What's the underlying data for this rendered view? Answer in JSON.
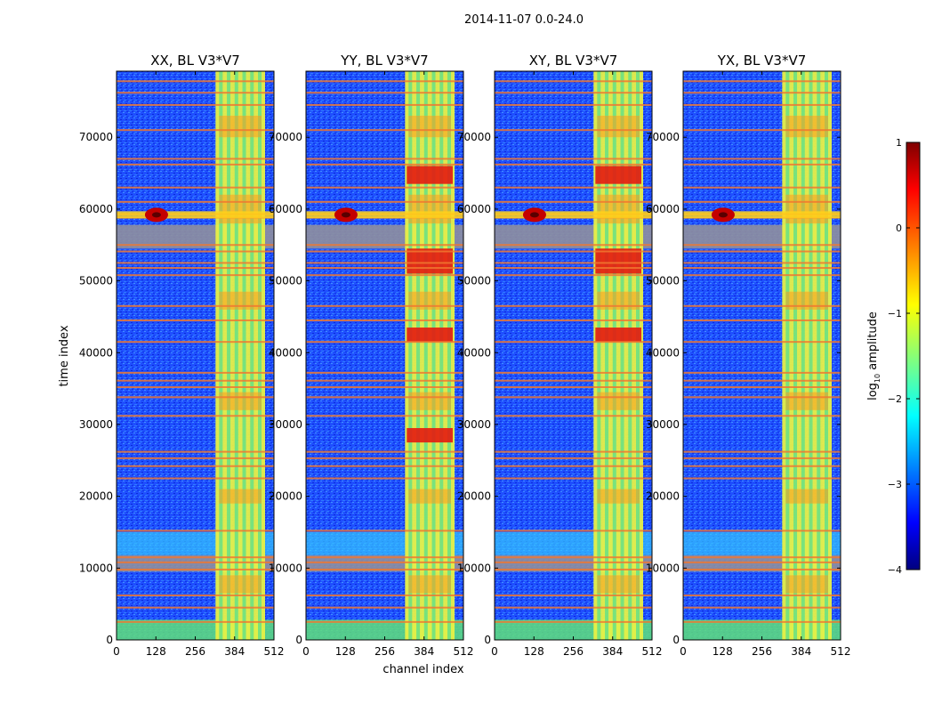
{
  "figure": {
    "suptitle": "2014-11-07 0.0-24.0",
    "xlabel": "channel index",
    "ylabel": "time index"
  },
  "chart_data": {
    "type": "heatmap",
    "title": "2014-11-07 0.0-24.0",
    "xlabel": "channel index",
    "ylabel": "time index",
    "xlim": [
      0,
      512
    ],
    "ylim": [
      0,
      79200
    ],
    "xticks": [
      0,
      128,
      256,
      384,
      512
    ],
    "yticks": [
      0,
      10000,
      20000,
      30000,
      40000,
      50000,
      60000,
      70000
    ],
    "panels": [
      {
        "title": "XX, BL V3*V7",
        "hot_band_channels": [
          322,
          512
        ],
        "strong_blocks": []
      },
      {
        "title": "YY, BL V3*V7",
        "hot_band_channels": [
          322,
          512
        ],
        "strong_blocks": [
          [
            63500,
            66000
          ],
          [
            41500,
            43500
          ],
          [
            27500,
            29500
          ],
          [
            51000,
            54500
          ]
        ]
      },
      {
        "title": "XY, BL V3*V7",
        "hot_band_channels": [
          322,
          512
        ],
        "strong_blocks": [
          [
            63500,
            66000
          ],
          [
            41500,
            43500
          ],
          [
            51000,
            54500
          ]
        ]
      },
      {
        "title": "YX, BL V3*V7",
        "hot_band_channels": [
          322,
          512
        ],
        "strong_blocks": []
      }
    ],
    "colorbar": {
      "label": "log",
      "label_sub": "10",
      "label_suffix": " amplitude",
      "range": [
        -4,
        1
      ],
      "ticks": [
        1,
        0,
        -1,
        -2,
        -3,
        -4
      ],
      "tick_labels": [
        "1",
        "0",
        "−1",
        "−2",
        "−3",
        "−4"
      ],
      "colormap": "jet"
    },
    "rfi_rows": [
      2500,
      4500,
      6200,
      9800,
      10800,
      11500,
      15200,
      22500,
      24200,
      25300,
      26200,
      31200,
      33800,
      35200,
      36100,
      37200,
      41500,
      44500,
      46500,
      50800,
      51800,
      52500,
      54100,
      55000,
      58800,
      59300,
      61000,
      63000,
      66200,
      67000,
      71000,
      74500,
      76200,
      77800
    ],
    "grey_bands": [
      [
        9500,
        11800
      ],
      [
        54500,
        57800
      ]
    ],
    "source_event_time": 59200
  }
}
